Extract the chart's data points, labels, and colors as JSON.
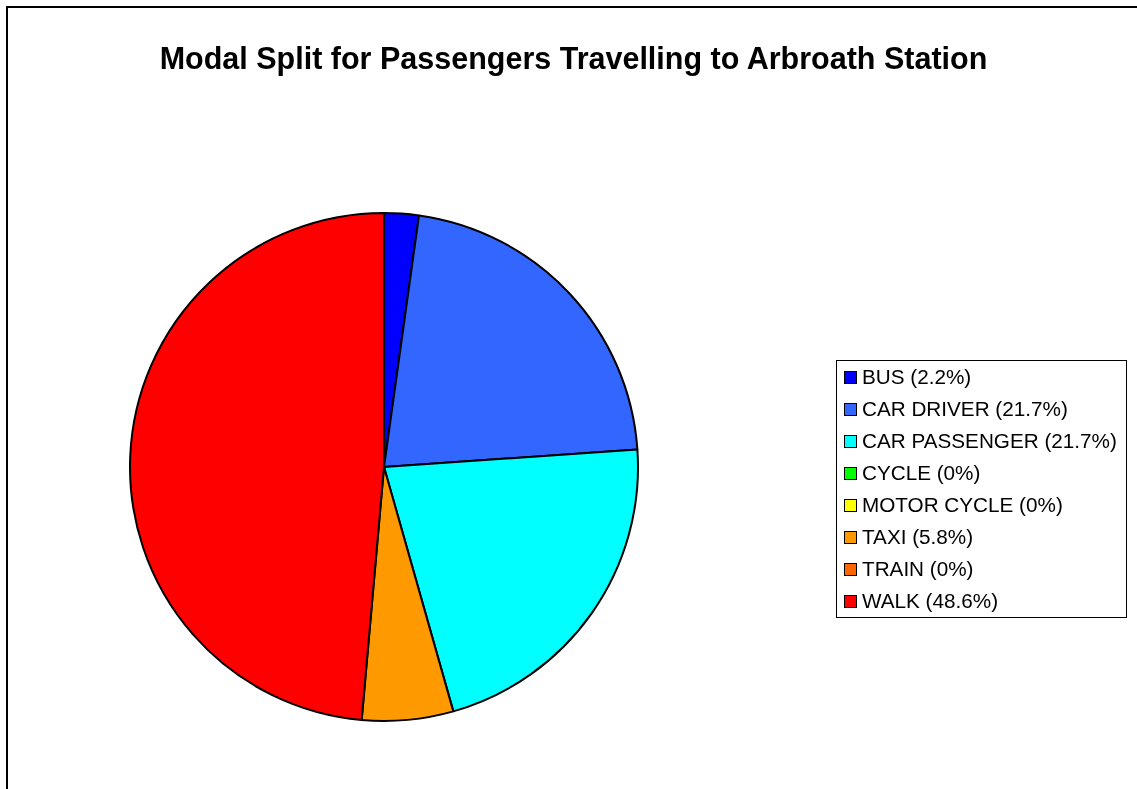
{
  "chart_data": {
    "type": "pie",
    "title": "Modal Split for Passengers Travelling to Arbroath Station",
    "categories": [
      "BUS (2.2%)",
      "CAR DRIVER (21.7%)",
      "CAR PASSENGER (21.7%)",
      "CYCLE (0%)",
      "MOTOR CYCLE (0%)",
      "TAXI (5.8%)",
      "TRAIN (0%)",
      "WALK (48.6%)"
    ],
    "values": [
      2.2,
      21.7,
      21.7,
      0,
      0,
      5.8,
      0,
      48.6
    ],
    "colors": [
      "#0000ff",
      "#3366ff",
      "#00ffff",
      "#00ff00",
      "#ffff00",
      "#ff9900",
      "#ff6600",
      "#ff0000"
    ],
    "legend": "right"
  }
}
